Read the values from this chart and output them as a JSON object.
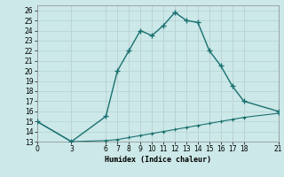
{
  "xlabel": "Humidex (Indice chaleur)",
  "bg_color": "#cce8e8",
  "grid_color": "#b8d8d8",
  "line_color": "#1a7070",
  "ylim": [
    13,
    26.5
  ],
  "xlim": [
    0,
    21
  ],
  "yticks": [
    13,
    14,
    15,
    16,
    17,
    18,
    19,
    20,
    21,
    22,
    23,
    24,
    25,
    26
  ],
  "xticks": [
    0,
    3,
    6,
    7,
    8,
    9,
    10,
    11,
    12,
    13,
    14,
    15,
    16,
    17,
    18,
    21
  ],
  "xtick_labels": [
    "0",
    "3",
    "6",
    "7",
    "8",
    "9",
    "10",
    "11",
    "12",
    "13",
    "14",
    "15",
    "16",
    "17",
    "18",
    "21"
  ],
  "upper_x": [
    0,
    3,
    6,
    7,
    8,
    9,
    10,
    11,
    12,
    13,
    14,
    15,
    16,
    17,
    18,
    21
  ],
  "upper_y": [
    15,
    13,
    15.5,
    20,
    22,
    24,
    23.5,
    24.5,
    25.8,
    25,
    24.8,
    22,
    20.5,
    18.5,
    17,
    16
  ],
  "lower_x": [
    0,
    3,
    6,
    7,
    8,
    9,
    10,
    11,
    12,
    13,
    14,
    15,
    16,
    17,
    18,
    21
  ],
  "lower_y": [
    15,
    13,
    13.1,
    13.2,
    13.4,
    13.6,
    13.8,
    14.0,
    14.2,
    14.4,
    14.6,
    14.8,
    15.0,
    15.2,
    15.4,
    15.8
  ]
}
